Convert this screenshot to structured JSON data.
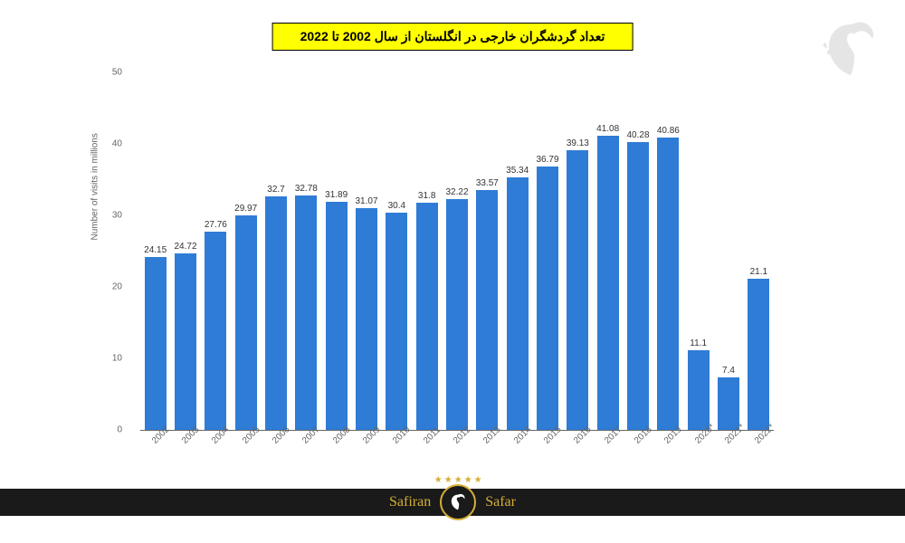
{
  "title": "تعداد گردشگران خارجی در انگلستان از سال 2002 تا 2022",
  "y_axis_label": "Number of visits in millions",
  "chart": {
    "type": "bar",
    "ylim": [
      0,
      50
    ],
    "ytick_step": 10,
    "bar_color": "#2e7cd6",
    "background_color": "#ffffff",
    "title_bg": "#ffff00",
    "label_fontsize": 10,
    "categories": [
      "2002",
      "2003",
      "2004",
      "2005",
      "2006",
      "2007",
      "2008",
      "2009",
      "2010",
      "2011",
      "2012",
      "2013",
      "2014",
      "2015",
      "2016",
      "2017",
      "2018",
      "2019",
      "2020*",
      "2021*",
      "2022*"
    ],
    "values": [
      24.15,
      24.72,
      27.76,
      29.97,
      32.7,
      32.78,
      31.89,
      31.07,
      30.4,
      31.8,
      32.22,
      33.57,
      35.34,
      36.79,
      39.13,
      41.08,
      40.28,
      40.86,
      11.1,
      7.4,
      21.1
    ],
    "value_labels": [
      "24.15",
      "24.72",
      "27.76",
      "29.97",
      "32.7",
      "32.78",
      "31.89",
      "31.07",
      "30.4",
      "31.8",
      "32.22",
      "33.57",
      "35.34",
      "36.79",
      "39.13",
      "41.08",
      "40.28",
      "40.86",
      "11.1",
      "7.4",
      "21.1"
    ]
  },
  "y_ticks": [
    {
      "value": 0,
      "label": "0"
    },
    {
      "value": 10,
      "label": "10"
    },
    {
      "value": 20,
      "label": "20"
    },
    {
      "value": 30,
      "label": "30"
    },
    {
      "value": 40,
      "label": "40"
    },
    {
      "value": 50,
      "label": "50"
    }
  ],
  "footer": {
    "left": "Safiran",
    "right": "Safar",
    "accent_color": "#d4af37",
    "bg_color": "#1a1a1a"
  }
}
